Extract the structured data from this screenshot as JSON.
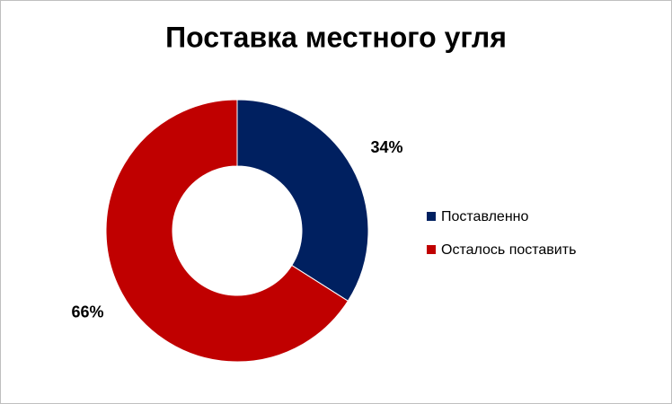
{
  "chart_data": {
    "type": "donut",
    "title": "Поставка местного угля",
    "categories": [
      "Поставленно",
      "Осталось поставить"
    ],
    "values": [
      34,
      66
    ],
    "value_labels": [
      "34%",
      "66%"
    ],
    "colors": [
      "#002060",
      "#c00000"
    ],
    "legend": "right"
  }
}
